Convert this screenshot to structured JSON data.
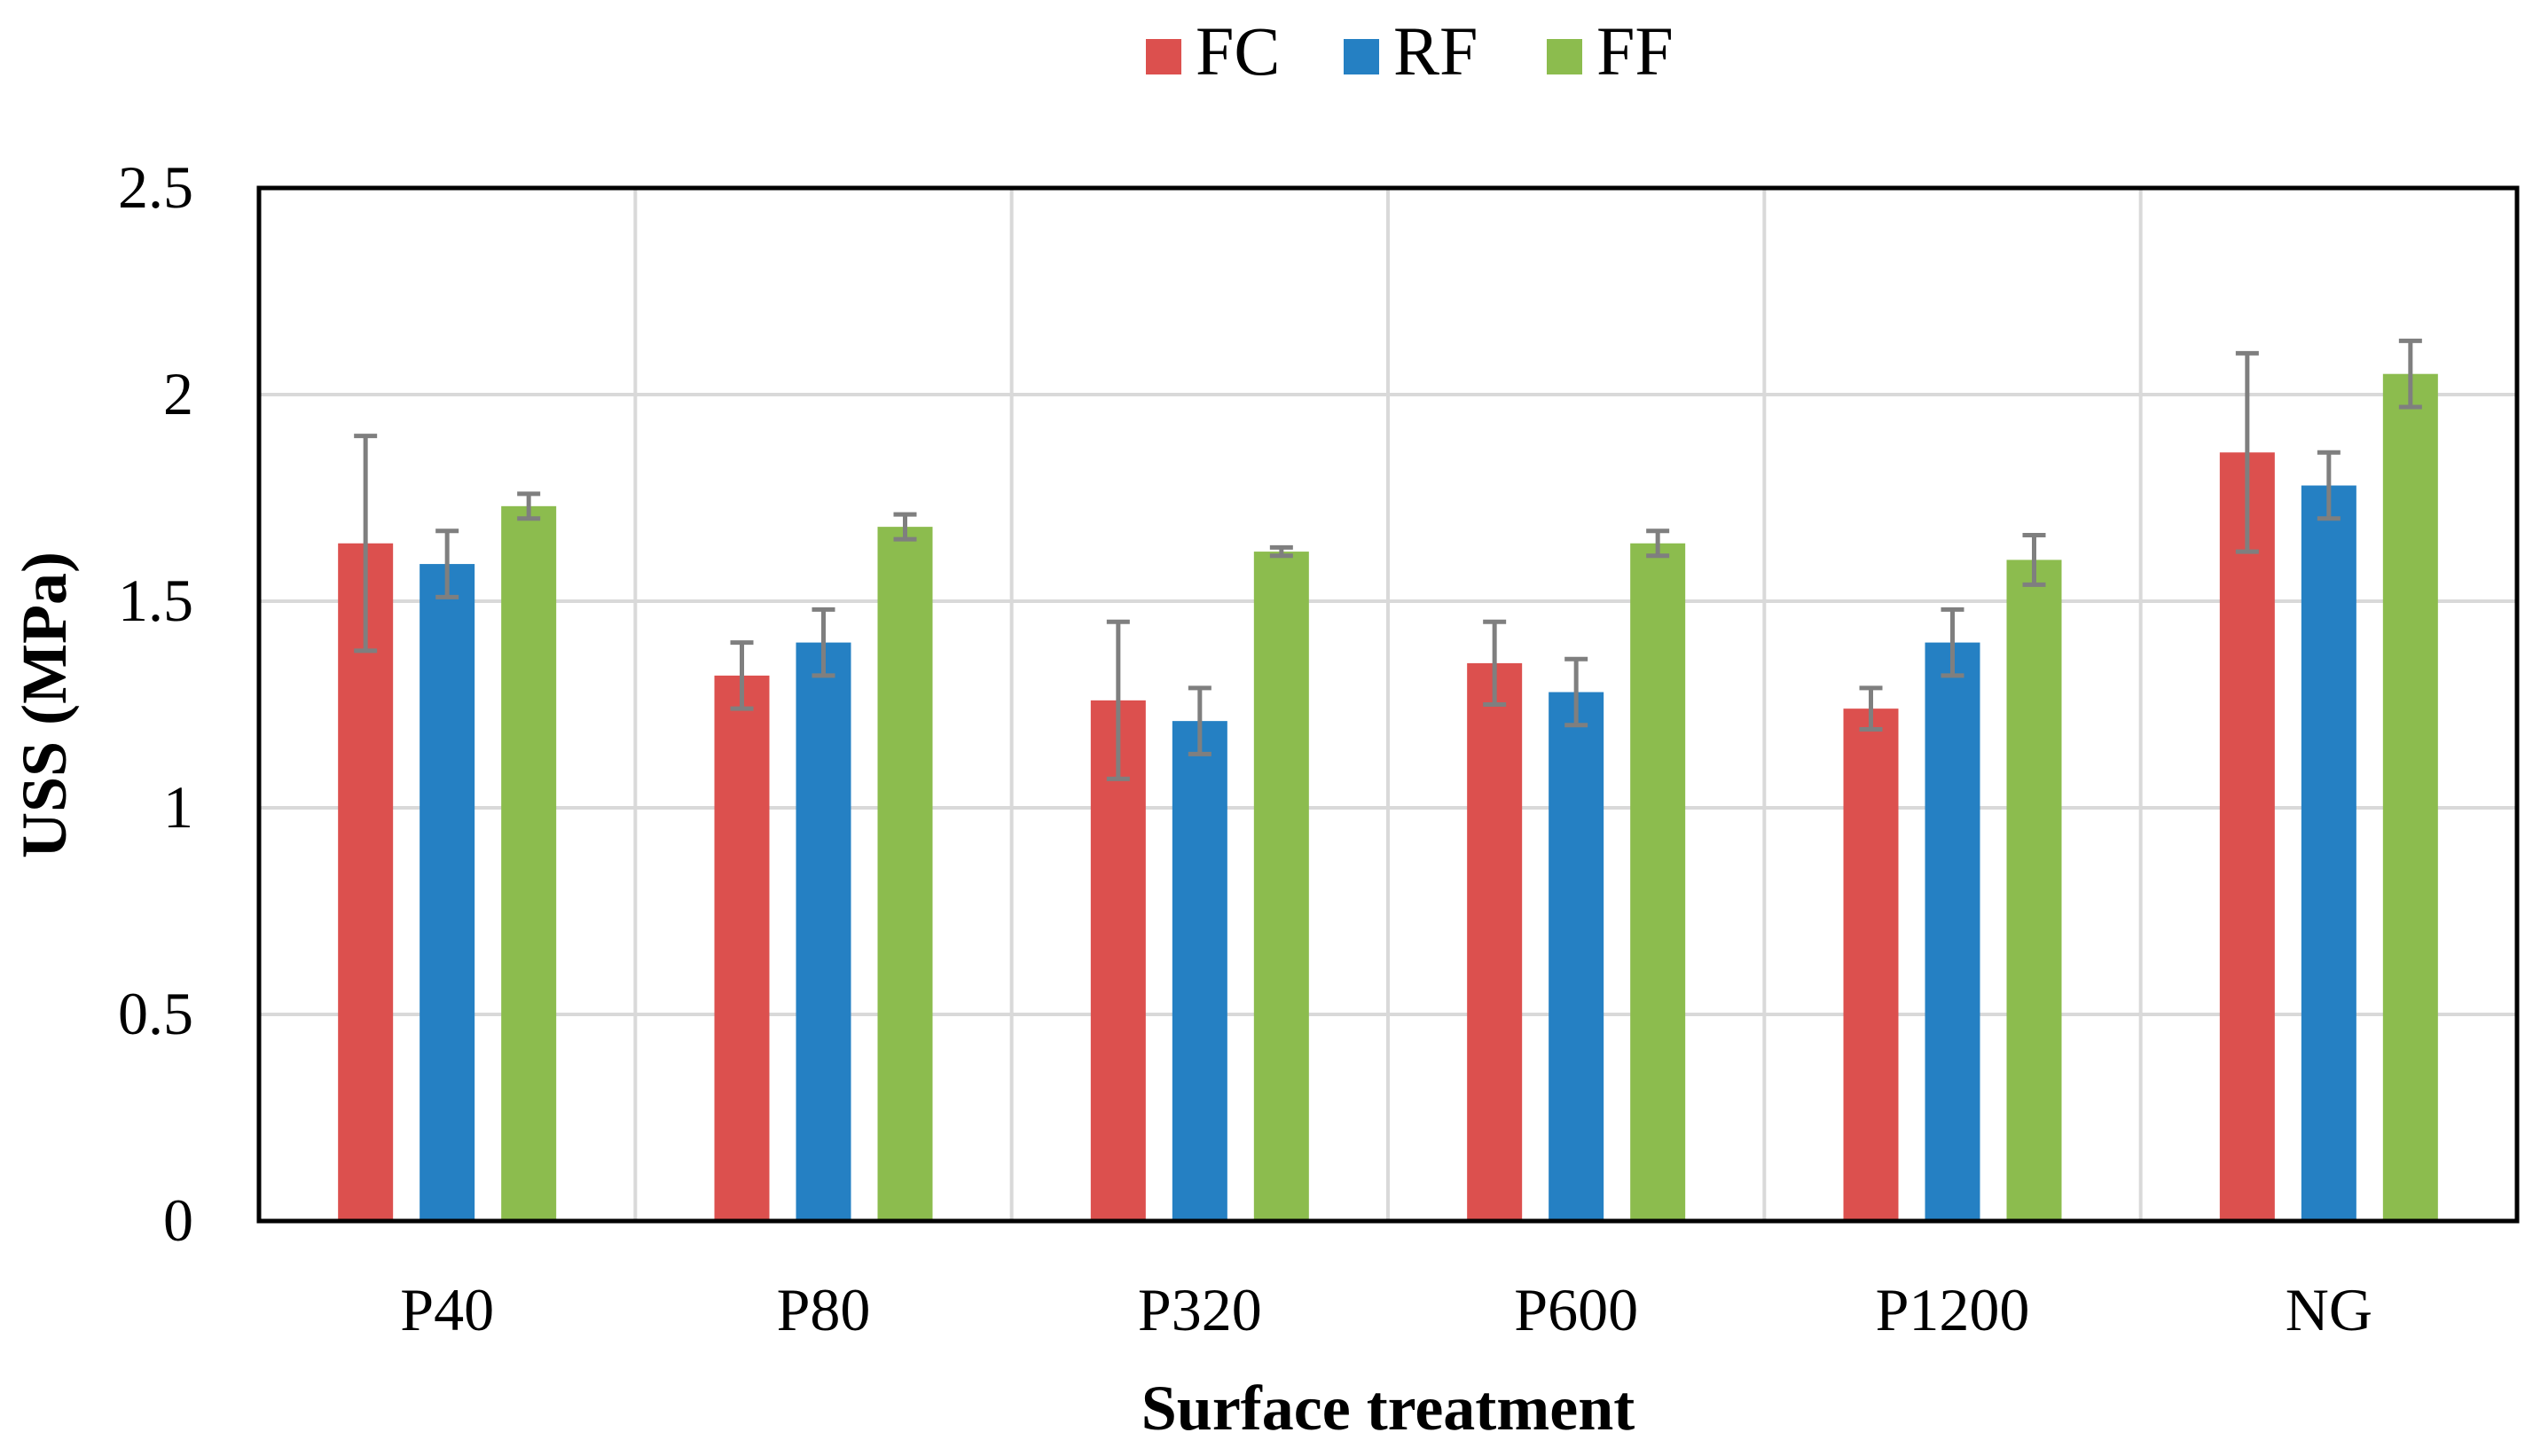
{
  "chart_data": {
    "type": "bar",
    "title": "",
    "xlabel": "Surface treatment",
    "ylabel": "USS (MPa)",
    "ylim": [
      0,
      2.5
    ],
    "yticks": [
      "0",
      "0.5",
      "1",
      "1.5",
      "2",
      "2.5"
    ],
    "categories": [
      "P40",
      "P80",
      "P320",
      "P600",
      "P1200",
      "NG"
    ],
    "grid": true,
    "legend_position": "top-center",
    "error_bar_color": "#7f7f7f",
    "series": [
      {
        "name": "FC",
        "color": "#dc504e",
        "values": [
          1.64,
          1.32,
          1.26,
          1.35,
          1.24,
          1.86
        ],
        "errors": [
          0.26,
          0.08,
          0.19,
          0.1,
          0.05,
          0.24
        ]
      },
      {
        "name": "RF",
        "color": "#2580c3",
        "values": [
          1.59,
          1.4,
          1.21,
          1.28,
          1.4,
          1.78
        ],
        "errors": [
          0.08,
          0.08,
          0.08,
          0.08,
          0.08,
          0.08
        ]
      },
      {
        "name": "FF",
        "color": "#8cbc4e",
        "values": [
          1.73,
          1.68,
          1.62,
          1.64,
          1.6,
          2.05
        ],
        "errors": [
          0.03,
          0.03,
          0.01,
          0.03,
          0.06,
          0.08
        ]
      }
    ]
  }
}
